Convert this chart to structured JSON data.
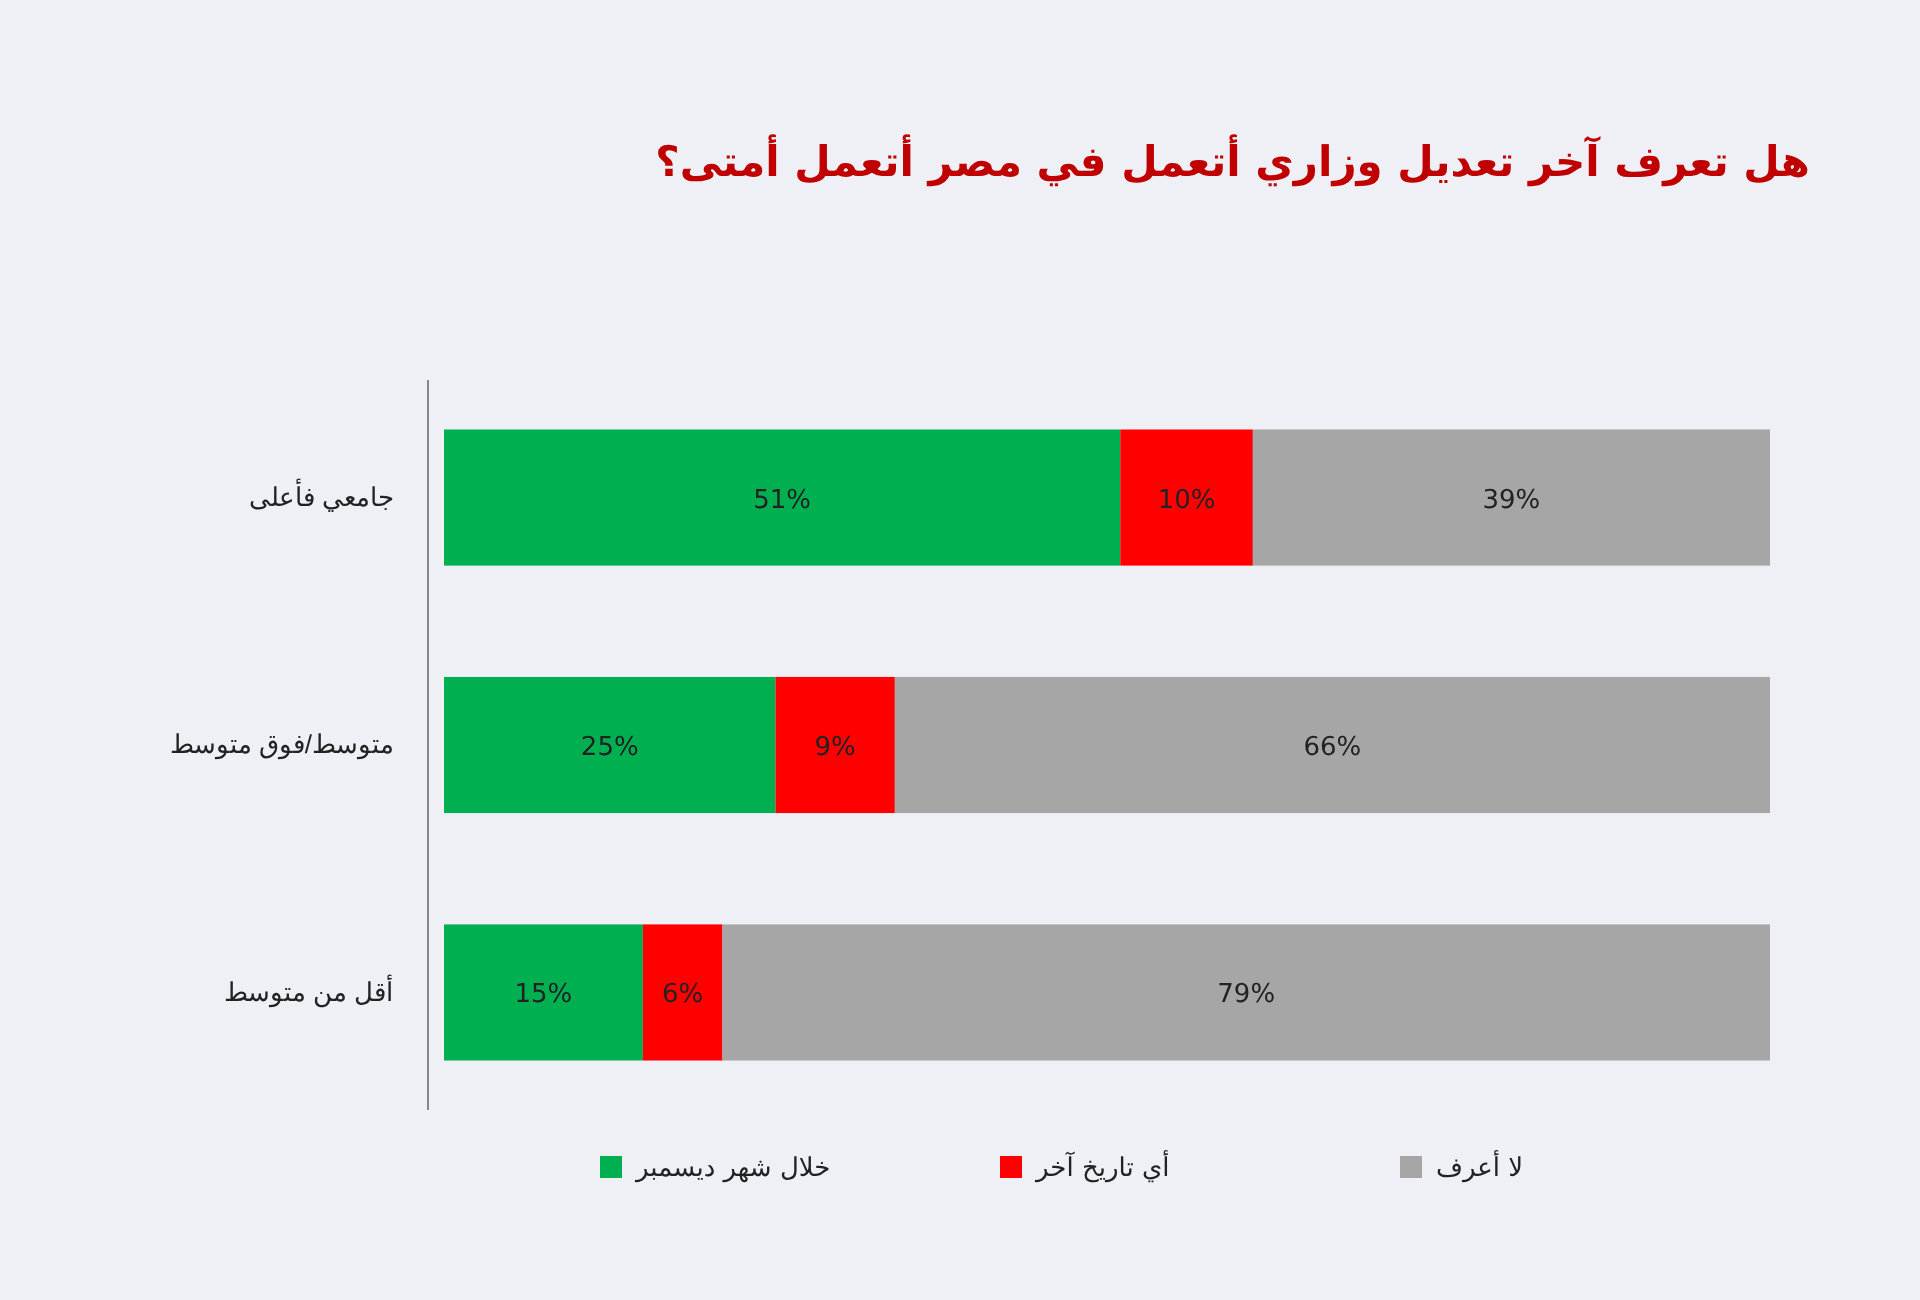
{
  "chart_data": {
    "type": "bar",
    "orientation": "horizontal",
    "stacked": true,
    "title": "هل تعرف آخر تعديل وزاري أتعمل في مصر أتعمل أمتى؟",
    "categories": [
      "جامعي فأعلى",
      "متوسط/فوق متوسط",
      "أقل من متوسط"
    ],
    "series": [
      {
        "name": "خلال شهر ديسمبر",
        "color": "#00b050",
        "values": [
          51,
          25,
          15
        ],
        "value_labels": [
          "51%",
          "25%",
          "15%"
        ]
      },
      {
        "name": "أي تاريخ آخر",
        "color": "#ff0000",
        "values": [
          10,
          9,
          6
        ],
        "value_labels": [
          "10%",
          "9%",
          "6%"
        ]
      },
      {
        "name": "لا أعرف",
        "color": "#a6a6a6",
        "values": [
          39,
          66,
          79
        ],
        "value_labels": [
          "39%",
          "66%",
          "79%"
        ]
      }
    ],
    "legend": "bottom"
  }
}
